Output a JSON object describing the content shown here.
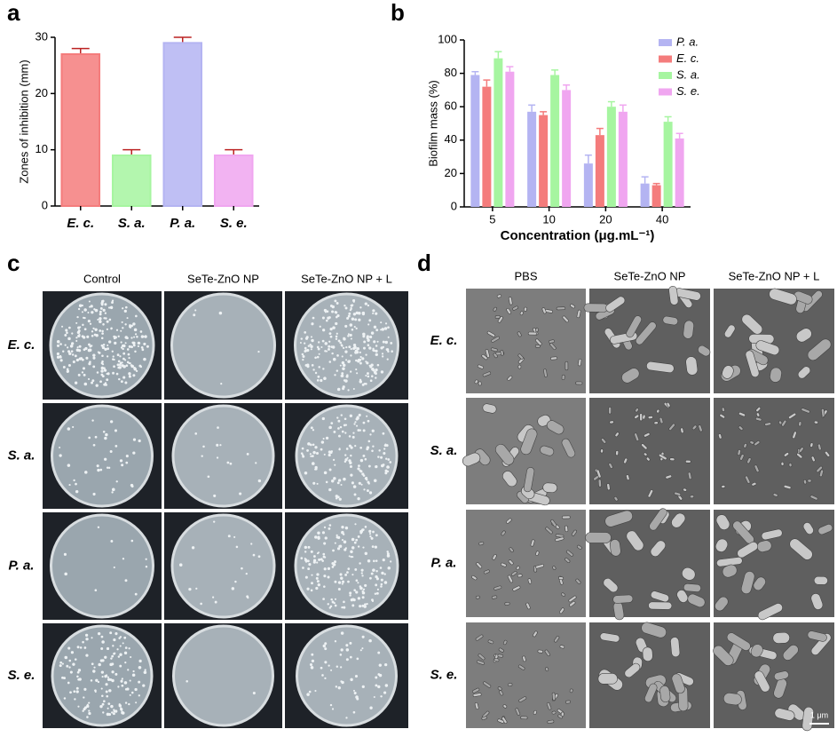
{
  "chart_data": [
    {
      "type": "bar",
      "panel": "a",
      "ylabel": "Zones of inhibition (mm)",
      "categories": [
        "E. c.",
        "S. a.",
        "P. a.",
        "S. e."
      ],
      "values": [
        27,
        9,
        29,
        9
      ],
      "errors": [
        1,
        1,
        1,
        1
      ],
      "colors": [
        "#f47c7c",
        "#a6f5a0",
        "#b4b4f2",
        "#f0a6f0"
      ],
      "ylim": [
        0,
        30
      ],
      "yticks": [
        0,
        10,
        20,
        30
      ]
    },
    {
      "type": "grouped-bar",
      "panel": "b",
      "ylabel": "Biofilm mass (%)",
      "xlabel": "Concentration (μg.mL⁻¹)",
      "categories": [
        "5",
        "10",
        "20",
        "40"
      ],
      "series": [
        {
          "name": "P. a.",
          "color": "#b4b4f2",
          "values": [
            79,
            57,
            26,
            14
          ],
          "errors": [
            2,
            4,
            5,
            4
          ]
        },
        {
          "name": "E. c.",
          "color": "#f47c7c",
          "values": [
            72,
            55,
            43,
            13
          ],
          "errors": [
            4,
            2,
            4,
            1
          ]
        },
        {
          "name": "S. a.",
          "color": "#a6f5a0",
          "values": [
            89,
            79,
            60,
            51
          ],
          "errors": [
            4,
            3,
            3,
            3
          ]
        },
        {
          "name": "S. e.",
          "color": "#f0a6f0",
          "values": [
            81,
            70,
            57,
            41
          ],
          "errors": [
            3,
            3,
            4,
            3
          ]
        }
      ],
      "ylim": [
        0,
        100
      ],
      "yticks": [
        0,
        20,
        40,
        60,
        80,
        100
      ]
    }
  ],
  "plates": {
    "panel": "c",
    "columns": [
      "Control",
      "SeTe-ZnO NP",
      "SeTe-ZnO NP + L"
    ],
    "rows": [
      "E. c.",
      "S. a.",
      "P. a.",
      "S. e."
    ]
  },
  "sem": {
    "panel": "d",
    "columns": [
      "PBS",
      "SeTe-ZnO NP",
      "SeTe-ZnO NP + L"
    ],
    "rows": [
      "E. c.",
      "S. a.",
      "P. a.",
      "S. e."
    ],
    "scale_bar": "1 μm"
  }
}
